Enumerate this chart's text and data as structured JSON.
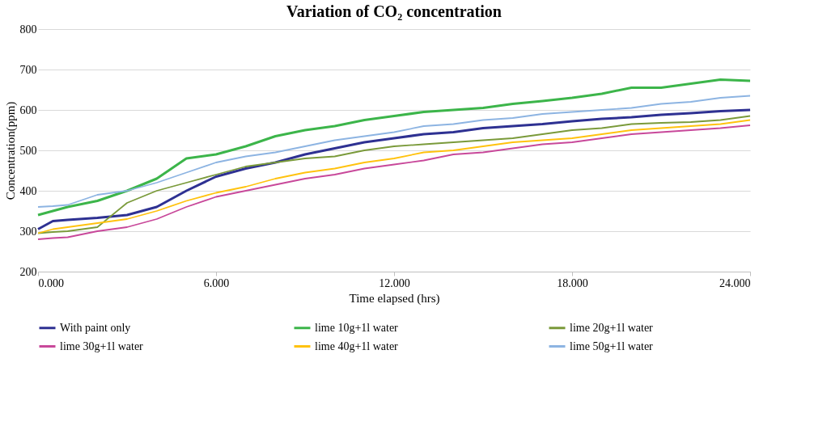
{
  "chart_data": {
    "type": "line",
    "title": "Variation of CO₂ concentration",
    "xlabel": "Time elapsed (hrs)",
    "ylabel": "Concentration(ppm)",
    "x": [
      0,
      0.5,
      1,
      2,
      3,
      4,
      5,
      6,
      7,
      8,
      9,
      10,
      11,
      12,
      13,
      14,
      15,
      16,
      17,
      18,
      19,
      20,
      21,
      22,
      23,
      24
    ],
    "series": [
      {
        "name": "With paint only",
        "color": "#2e3192",
        "values": [
          305,
          325,
          328,
          333,
          340,
          360,
          400,
          435,
          455,
          470,
          490,
          505,
          520,
          530,
          540,
          545,
          555,
          560,
          565,
          572,
          578,
          582,
          588,
          592,
          597,
          600
        ]
      },
      {
        "name": "lime 10g+1l water",
        "color": "#3cb54a",
        "values": [
          340,
          350,
          360,
          375,
          400,
          430,
          480,
          490,
          510,
          535,
          550,
          560,
          575,
          585,
          595,
          600,
          605,
          615,
          622,
          630,
          640,
          655,
          655,
          665,
          675,
          672
        ]
      },
      {
        "name": "lime 20g+1l water",
        "color": "#7a9a3a",
        "values": [
          295,
          298,
          300,
          310,
          370,
          400,
          420,
          440,
          460,
          470,
          480,
          485,
          500,
          510,
          515,
          520,
          525,
          530,
          540,
          550,
          555,
          565,
          568,
          570,
          575,
          585
        ]
      },
      {
        "name": "lime 30g+1l water",
        "color": "#c8489a",
        "values": [
          280,
          283,
          285,
          300,
          310,
          330,
          360,
          385,
          400,
          415,
          430,
          440,
          455,
          465,
          475,
          490,
          495,
          505,
          515,
          520,
          530,
          540,
          545,
          550,
          555,
          562
        ]
      },
      {
        "name": "lime 40g+1l water",
        "color": "#ffc20e",
        "values": [
          295,
          305,
          310,
          320,
          330,
          350,
          375,
          395,
          410,
          430,
          445,
          455,
          470,
          480,
          495,
          500,
          510,
          520,
          525,
          530,
          540,
          550,
          555,
          560,
          565,
          575
        ]
      },
      {
        "name": "lime 50g+1l water",
        "color": "#8db4e2",
        "values": [
          360,
          362,
          365,
          390,
          400,
          420,
          445,
          470,
          485,
          495,
          510,
          525,
          535,
          545,
          560,
          565,
          575,
          580,
          590,
          595,
          600,
          605,
          615,
          620,
          630,
          635
        ]
      }
    ],
    "xlim": [
      0,
      24
    ],
    "xticks": [
      {
        "value": 0,
        "label": "0.000"
      },
      {
        "value": 6,
        "label": "6.000"
      },
      {
        "value": 12,
        "label": "12.000"
      },
      {
        "value": 18,
        "label": "18.000"
      },
      {
        "value": 24,
        "label": "24.000"
      }
    ],
    "ylim": [
      200,
      800
    ],
    "yticks": [
      200,
      300,
      400,
      500,
      600,
      700,
      800
    ],
    "grid": "y",
    "legend": "bottom",
    "marker": "none",
    "line_style": "solid"
  }
}
